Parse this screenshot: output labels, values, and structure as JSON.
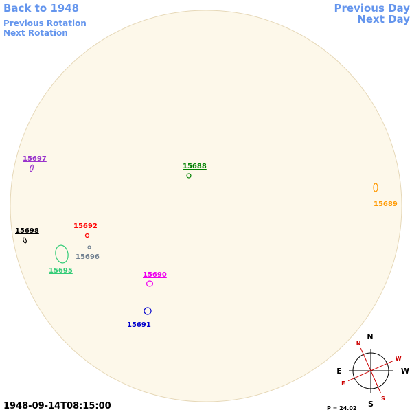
{
  "navigation": {
    "back": "Back to 1948",
    "previous_rotation": "Previous Rotation",
    "next_rotation": "Next Rotation",
    "previous_day": "Previous Day",
    "next_day": "Next Day"
  },
  "timestamp": "1948-09-14T08:15:00",
  "regions": [
    {
      "label": "15697",
      "color": "#9933cc"
    },
    {
      "label": "15688",
      "color": "#008000"
    },
    {
      "label": "15689",
      "color": "#ff9900"
    },
    {
      "label": "15698",
      "color": "#000000"
    },
    {
      "label": "15692",
      "color": "#ff0000"
    },
    {
      "label": "15696",
      "color": "#708090"
    },
    {
      "label": "15695",
      "color": "#33cc77"
    },
    {
      "label": "15690",
      "color": "#ee00ee"
    },
    {
      "label": "15691",
      "color": "#0000cc"
    }
  ],
  "compass": {
    "north": "N",
    "south": "S",
    "east": "E",
    "west": "W",
    "solar": {
      "north": "N",
      "west": "W",
      "east": "E",
      "south": "S",
      "color": "#cc0000"
    },
    "p_angle": {
      "label": "P =",
      "value": 24.02
    }
  }
}
